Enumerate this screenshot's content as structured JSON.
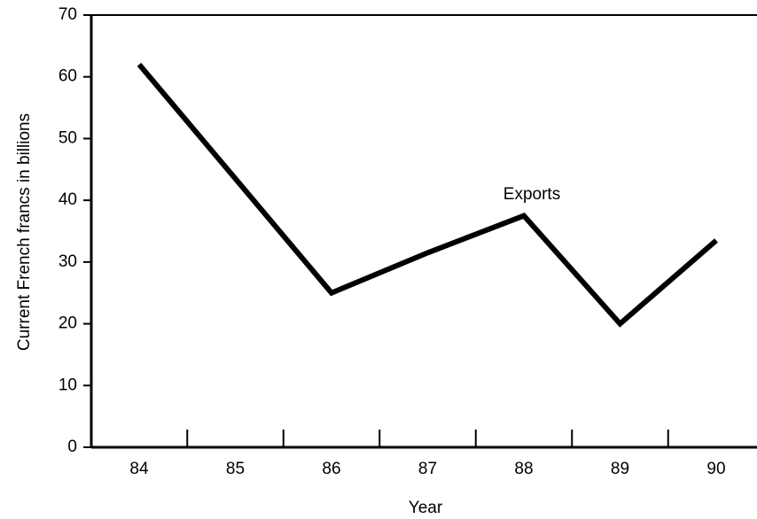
{
  "chart_data": {
    "type": "line",
    "x_label": "Year",
    "y_label": "Current French francs in billions",
    "annotation": "Exports",
    "categories": [
      "84",
      "85",
      "86",
      "87",
      "88",
      "89",
      "90"
    ],
    "series": [
      {
        "name": "Exports",
        "color": "#000000",
        "values": [
          62,
          43.5,
          25,
          31.5,
          37.5,
          20,
          33.5
        ]
      }
    ],
    "ylim": [
      0,
      70
    ],
    "yticks": [
      0,
      10,
      20,
      30,
      40,
      50,
      60,
      70
    ]
  }
}
